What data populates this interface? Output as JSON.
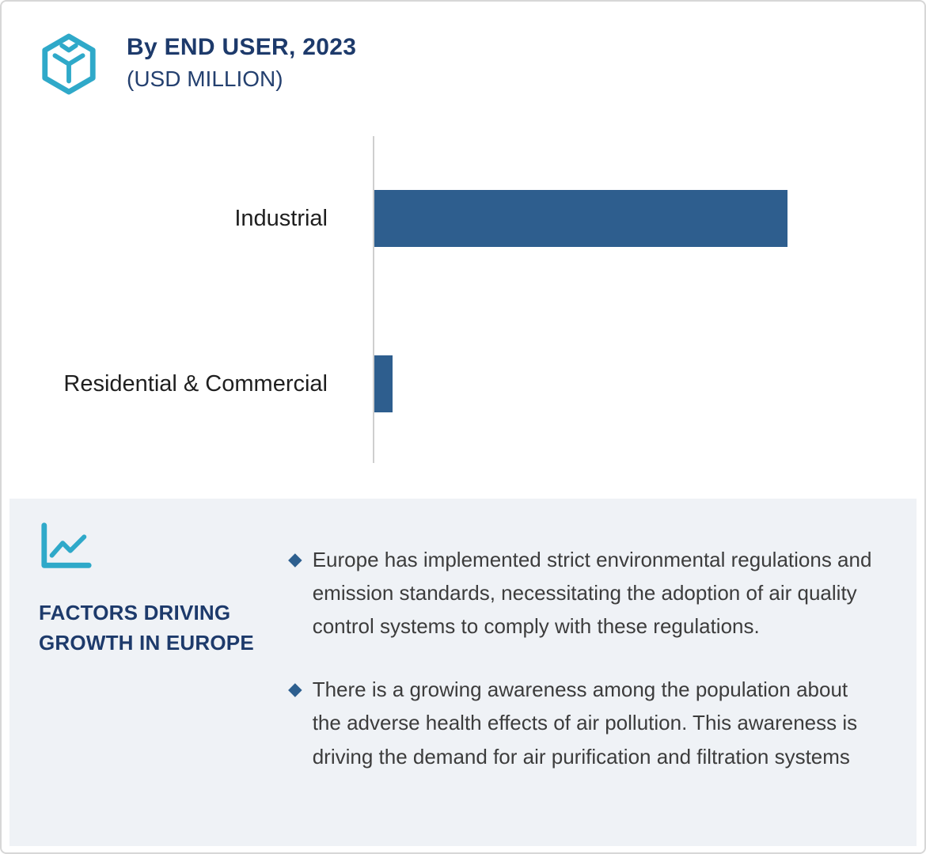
{
  "header": {
    "title_line1": "By END USER, 2023",
    "title_line2": "(USD MILLION)"
  },
  "chart_data": {
    "type": "bar",
    "orientation": "horizontal",
    "title": "By END USER, 2023 (USD MILLION)",
    "categories": [
      "Industrial",
      "Residential & Commercial"
    ],
    "values": [
      100,
      4.4
    ],
    "xlabel": "",
    "ylabel": "",
    "xlim": [
      0,
      105
    ],
    "grid": false,
    "legend": "none",
    "bar_color": "#2e5e8e"
  },
  "factors": {
    "heading": "FACTORS DRIVING GROWTH IN EUROPE",
    "bullet_marker": "◆",
    "bullets": [
      "Europe has implemented strict environmental regulations and emission standards, necessitating the adoption of air quality control systems to comply with these regulations.",
      "There is a growing awareness among the population about the adverse health effects of air pollution. This awareness is driving the demand for air purification and filtration systems"
    ]
  },
  "colors": {
    "bar": "#2e5e8e",
    "navy_text": "#1d3a6b",
    "teal_accent": "#2fa9c9",
    "panel_background": "#eff2f6",
    "bullet_diamond": "#2d5f8f"
  },
  "icons": {
    "logo": "hexagon-package-icon",
    "factors": "line-chart-icon"
  }
}
